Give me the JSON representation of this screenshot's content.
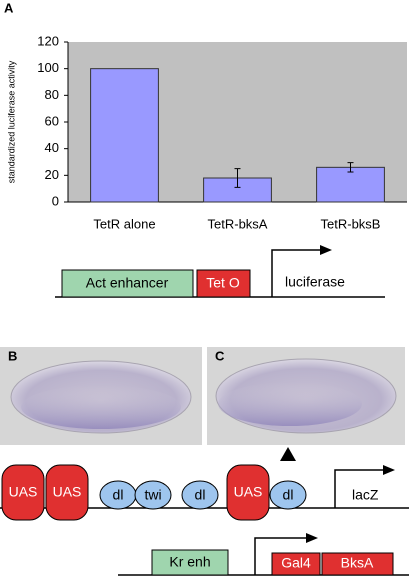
{
  "chart_data": {
    "type": "bar",
    "panel": "A",
    "ylabel": "standardized luciferase activity",
    "categories": [
      "TetR alone",
      "TetR-bksA",
      "TetR-bksB"
    ],
    "values": [
      100,
      18,
      26
    ],
    "errors": [
      null,
      7,
      3.5
    ],
    "color": "#9999ff",
    "ylim": [
      0,
      120
    ],
    "yticks": [
      0,
      20,
      40,
      60,
      80,
      100,
      120
    ],
    "grid": false
  },
  "construct_a": {
    "enhancer": "Act enhancer",
    "operator": "Tet O",
    "gene": "luciferase"
  },
  "panels": {
    "b": "B",
    "c": "C"
  },
  "construct_b": {
    "sites": [
      "UAS",
      "UAS",
      "dl",
      "twi",
      "dl",
      "UAS",
      "dl"
    ],
    "gene": "lacZ"
  },
  "construct_c": {
    "enhancer": "Kr enh",
    "parts": [
      "Gal4",
      "BksA"
    ]
  }
}
